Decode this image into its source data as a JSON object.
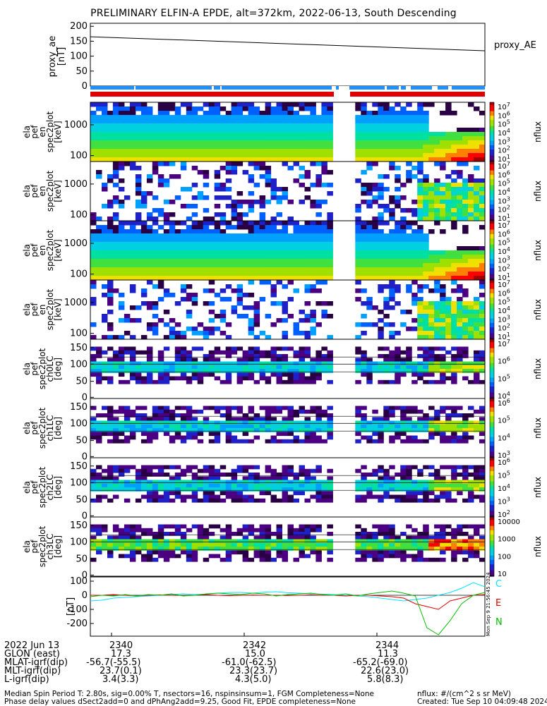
{
  "title": "PRELIMINARY ELFIN-A EPDE, alt=372km, 2022-06-13, South Descending",
  "proxy_panel": {
    "ylabel": "proxy_ae\n[nT]",
    "legend": "proxy_AE",
    "yticks": [
      "200",
      "150",
      "100",
      "50",
      "0"
    ]
  },
  "spec_panels": [
    {
      "ylabel": [
        "ela",
        "pef",
        "en",
        "spec2plot",
        "[keV]"
      ],
      "yticks": [
        "1000",
        "100"
      ],
      "cb_label": "nflux",
      "cb_ticks": [
        "10^7",
        "10^6",
        "10^5",
        "10^4",
        "10^3",
        "10^2",
        "10^1"
      ]
    },
    {
      "ylabel": [
        "ela",
        "pef",
        "en",
        "spec2plot",
        "[keV]"
      ],
      "yticks": [
        "1000",
        "100"
      ],
      "cb_label": "nflux",
      "cb_ticks": [
        "10^7",
        "10^6",
        "10^5",
        "10^4",
        "10^3",
        "10^2",
        "10^1"
      ]
    },
    {
      "ylabel": [
        "ela",
        "pef",
        "en",
        "spec2plot",
        "[keV]"
      ],
      "yticks": [
        "1000",
        "100"
      ],
      "cb_label": "nflux",
      "cb_ticks": [
        "10^7",
        "10^6",
        "10^5",
        "10^4",
        "10^3",
        "10^2",
        "10^1"
      ]
    },
    {
      "ylabel": [
        "ela",
        "pef",
        "en",
        "spec2plot",
        "[keV]"
      ],
      "yticks": [
        "1000",
        "100"
      ],
      "cb_label": "nflux",
      "cb_ticks": [
        "10^7",
        "10^6",
        "10^5",
        "10^4",
        "10^3",
        "10^2",
        "10^1"
      ]
    },
    {
      "ylabel": [
        "ela",
        "pef",
        "spec2plot",
        "ch0LC",
        "[deg]"
      ],
      "yticks": [
        "150",
        "100",
        "50",
        "0"
      ],
      "cb_label": "nflux",
      "cb_ticks": [
        "10^7",
        "10^6",
        "10^5",
        "10^4"
      ]
    },
    {
      "ylabel": [
        "ela",
        "pef",
        "spec2plot",
        "ch1LC",
        "[deg]"
      ],
      "yticks": [
        "150",
        "100",
        "50",
        "0"
      ],
      "cb_label": "nflux",
      "cb_ticks": [
        "10^6",
        "10^5",
        "10^4",
        "10^3"
      ]
    },
    {
      "ylabel": [
        "ela",
        "pef",
        "spec2plot",
        "ch2LC",
        "[deg]"
      ],
      "yticks": [
        "150",
        "100",
        "50",
        "0"
      ],
      "cb_label": "nflux",
      "cb_ticks": [
        "10^6",
        "10^5",
        "10^4",
        "10^3",
        "10^2"
      ]
    },
    {
      "ylabel": [
        "ela",
        "pef",
        "spec2plot",
        "ch3LC",
        "[deg]"
      ],
      "yticks": [
        "150",
        "100",
        "50",
        "0"
      ],
      "cb_label": "nflux",
      "cb_ticks": [
        "10000",
        "1000",
        "100",
        "10"
      ]
    }
  ],
  "mag_panel": {
    "ylabel": "[nT]",
    "yticks": [
      "100",
      "0",
      "-100",
      "-200"
    ],
    "legend": [
      {
        "label": "C",
        "color": "#00e5ff"
      },
      {
        "label": "E",
        "color": "#e00000"
      },
      {
        "label": "N",
        "color": "#00c000"
      }
    ],
    "stamp": "Mon Sep 9 21:56:45 2024"
  },
  "orbit_table": {
    "rows": [
      {
        "label": "2022 Jun 13",
        "values": [
          "2340",
          "2342",
          "2344"
        ]
      },
      {
        "label": "GLON (east)",
        "values": [
          "17.3",
          "15.0",
          "11.3"
        ]
      },
      {
        "label": "MLAT-igrf(dip)",
        "values": [
          "-56.7(-55.5)",
          "-61.0(-62.5)",
          "-65.2(-69.0)"
        ]
      },
      {
        "label": "MLT-igrf(dip)",
        "values": [
          "23.7(0.1)",
          "23.3(23.7)",
          "22.6(23.0)"
        ]
      },
      {
        "label": "L-igrf(dip)",
        "values": [
          "3.4(3.3)",
          "4.3(5.0)",
          "5.8(8.3)"
        ]
      }
    ]
  },
  "footer": {
    "line1": "Median Spin Period T: 2.80s, sig=0.00% T, nsectors=16, nspinsinsum=1, FGM Completeness=None",
    "line2": "Phase delay values dSect2add=0 and dPhAng2add=9.25, Good Fit, EPDE completeness=None",
    "units": "nflux: #/(cm^2 s sr MeV)",
    "created": "Created: Tue Sep 10 04:09:48 2024"
  },
  "chart_data": {
    "type": "line",
    "x_ticks": [
      "2340",
      "2342",
      "2344"
    ],
    "proxy_ae": {
      "name": "proxy_AE",
      "x": [
        0,
        1
      ],
      "y": [
        165,
        118
      ],
      "ylim": [
        0,
        210
      ]
    },
    "mag_series": [
      {
        "name": "C",
        "color": "#00e5ff",
        "values": [
          -40,
          -35,
          -20,
          -15,
          -10,
          -5,
          0,
          5,
          10,
          5,
          8,
          15,
          20,
          20,
          15,
          22,
          25,
          18,
          15,
          10,
          8,
          5,
          0,
          -5,
          -10,
          -20,
          -30,
          -40,
          -30,
          -20,
          0,
          20,
          50,
          90,
          60
        ]
      },
      {
        "name": "E",
        "color": "#e00000",
        "values": [
          0,
          0,
          5,
          0,
          -5,
          0,
          3,
          0,
          -2,
          0,
          5,
          0,
          -3,
          0,
          2,
          0,
          0,
          -2,
          0,
          3,
          0,
          0,
          -5,
          0,
          0,
          -5,
          -10,
          -20,
          -60,
          -80,
          -100,
          -40,
          -20,
          0,
          5
        ]
      },
      {
        "name": "N",
        "color": "#00c000",
        "values": [
          -10,
          0,
          -5,
          5,
          -5,
          5,
          0,
          10,
          -5,
          0,
          10,
          15,
          10,
          5,
          15,
          10,
          -5,
          5,
          10,
          15,
          5,
          0,
          10,
          -5,
          10,
          20,
          30,
          15,
          -5,
          -230,
          -280,
          -180,
          -60,
          0,
          20
        ]
      }
    ],
    "mag_ylim": [
      -290,
      130
    ]
  }
}
